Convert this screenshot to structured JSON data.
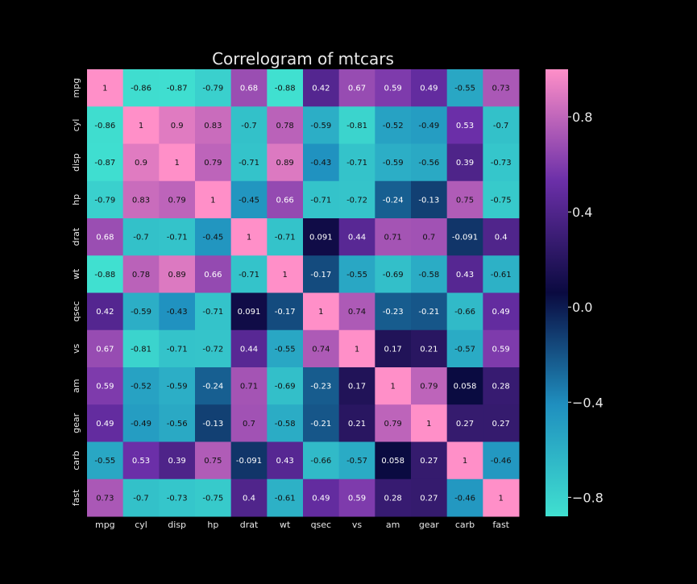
{
  "chart_data": {
    "type": "heatmap",
    "title": "Correlogram of mtcars",
    "xlabel": "",
    "ylabel": "",
    "categories": [
      "mpg",
      "cyl",
      "disp",
      "hp",
      "drat",
      "wt",
      "qsec",
      "vs",
      "am",
      "gear",
      "carb",
      "fast"
    ],
    "values": [
      [
        1,
        -0.86,
        -0.87,
        -0.79,
        0.68,
        -0.88,
        0.42,
        0.67,
        0.59,
        0.49,
        -0.55,
        0.73
      ],
      [
        -0.86,
        1,
        0.9,
        0.83,
        -0.7,
        0.78,
        -0.59,
        -0.81,
        -0.52,
        -0.49,
        0.53,
        -0.7
      ],
      [
        -0.87,
        0.9,
        1,
        0.79,
        -0.71,
        0.89,
        -0.43,
        -0.71,
        -0.59,
        -0.56,
        0.39,
        -0.73
      ],
      [
        -0.79,
        0.83,
        0.79,
        1,
        -0.45,
        0.66,
        -0.71,
        -0.72,
        -0.24,
        -0.13,
        0.75,
        -0.75
      ],
      [
        0.68,
        -0.7,
        -0.71,
        -0.45,
        1,
        -0.71,
        0.091,
        0.44,
        0.71,
        0.7,
        -0.091,
        0.4
      ],
      [
        -0.88,
        0.78,
        0.89,
        0.66,
        -0.71,
        1,
        -0.17,
        -0.55,
        -0.69,
        -0.58,
        0.43,
        -0.61
      ],
      [
        0.42,
        -0.59,
        -0.43,
        -0.71,
        0.091,
        -0.17,
        1,
        0.74,
        -0.23,
        -0.21,
        -0.66,
        0.49
      ],
      [
        0.67,
        -0.81,
        -0.71,
        -0.72,
        0.44,
        -0.55,
        0.74,
        1,
        0.17,
        0.21,
        -0.57,
        0.59
      ],
      [
        0.59,
        -0.52,
        -0.59,
        -0.24,
        0.71,
        -0.69,
        -0.23,
        0.17,
        1,
        0.79,
        0.058,
        0.28
      ],
      [
        0.49,
        -0.49,
        -0.56,
        -0.13,
        0.7,
        -0.58,
        -0.21,
        0.21,
        0.79,
        1,
        0.27,
        0.27
      ],
      [
        -0.55,
        0.53,
        0.39,
        0.75,
        -0.091,
        0.43,
        -0.66,
        -0.57,
        0.058,
        0.27,
        1,
        -0.46
      ],
      [
        0.73,
        -0.7,
        -0.73,
        -0.75,
        0.4,
        -0.61,
        0.49,
        0.59,
        0.28,
        0.27,
        -0.46,
        1
      ]
    ],
    "color_range": [
      -0.88,
      1
    ],
    "colormap": [
      "#40E0D0",
      "#1F8FBF",
      "#0A0A40",
      "#6B2FA8",
      "#FF8FC8"
    ],
    "colorbar_ticks": [
      "0.8",
      "0.4",
      "0.0",
      "−0.4",
      "−0.8"
    ],
    "colorbar_tick_values": [
      0.8,
      0.4,
      0.0,
      -0.4,
      -0.8
    ],
    "background": "#000000",
    "text_color": "#FFFFFF",
    "cell_label_color": "#111111"
  }
}
